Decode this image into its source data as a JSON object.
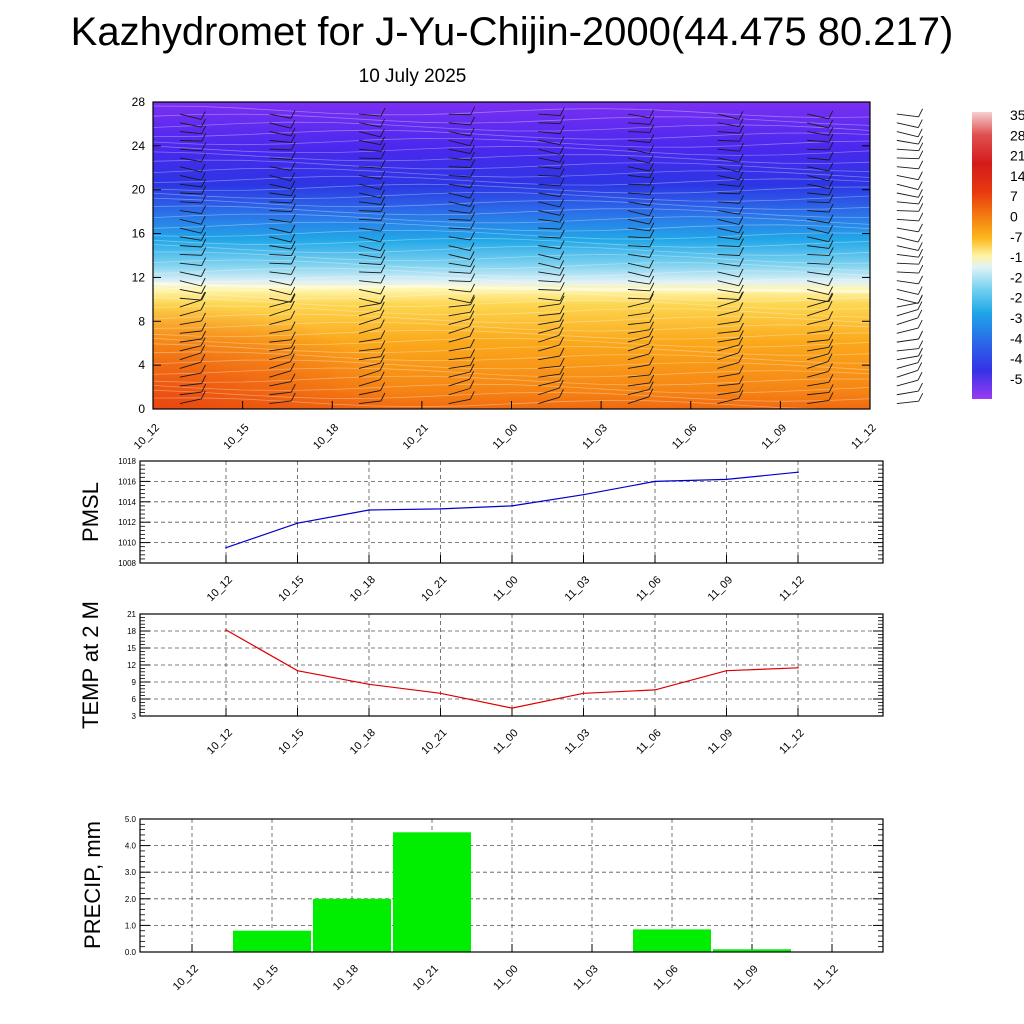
{
  "title": "Kazhydromet for J-Yu-Chijin-2000(44.475 80.217)",
  "subtitle": "10 July 2025",
  "chart_data": [
    {
      "type": "heatmap",
      "name": "cross-section",
      "x_ticks": [
        "10_12",
        "10_15",
        "10_18",
        "10_21",
        "11_00",
        "11_03",
        "11_06",
        "11_09",
        "11_12"
      ],
      "y_ticks": [
        0,
        4,
        8,
        12,
        16,
        20,
        24,
        28
      ],
      "ylim": [
        0,
        28
      ],
      "colorbar_labels": [
        "35",
        "28",
        "21",
        "14",
        "7",
        "0",
        "-7",
        "-1",
        "-2",
        "-2",
        "-3",
        "-4",
        "-4",
        "-5"
      ],
      "colorbar_colors": [
        "#f2c4c4",
        "#e05050",
        "#d82020",
        "#e83010",
        "#f37a10",
        "#fbb81c",
        "#fff3a8",
        "#dff1f7",
        "#6fd0ee",
        "#1ea6e8",
        "#2a74e8",
        "#2f3fe6",
        "#4b1ef2",
        "#9a3cf2"
      ],
      "surface_isotherm_m": [
        11.4,
        11.2,
        11.1,
        11.2,
        11.0,
        10.9,
        10.9,
        10.8,
        10.7
      ],
      "barb_columns_x_index": [
        0.5,
        1.5,
        2.5,
        3.5,
        4.5,
        5.5,
        6.5,
        7.5,
        8.5
      ]
    },
    {
      "type": "line",
      "name": "pmsl",
      "ylabel": "PMSL",
      "categories": [
        "10_12",
        "10_15",
        "10_18",
        "10_21",
        "11_00",
        "11_03",
        "11_06",
        "11_09",
        "11_12"
      ],
      "values": [
        1009.5,
        1011.9,
        1013.2,
        1013.3,
        1013.6,
        1014.7,
        1016.0,
        1016.2,
        1016.9
      ],
      "ylim": [
        1008,
        1018
      ],
      "y_ticks": [
        1008,
        1010,
        1012,
        1014,
        1016,
        1018
      ],
      "color": "#0000cc",
      "grid": true
    },
    {
      "type": "line",
      "name": "temp2m",
      "ylabel": "TEMP at 2 M",
      "categories": [
        "10_12",
        "10_15",
        "10_18",
        "10_21",
        "11_00",
        "11_03",
        "11_06",
        "11_09",
        "11_12"
      ],
      "values": [
        18.2,
        11.0,
        8.6,
        7.0,
        4.4,
        7.0,
        7.6,
        11.0,
        11.5
      ],
      "ylim": [
        3,
        21
      ],
      "y_ticks": [
        3,
        6,
        9,
        12,
        15,
        18,
        21
      ],
      "color": "#dd0000",
      "grid": true
    },
    {
      "type": "bar",
      "name": "precip",
      "ylabel": "PRECIP, mm",
      "categories": [
        "10_12",
        "10_15",
        "10_18",
        "10_21",
        "11_00",
        "11_03",
        "11_06",
        "11_09",
        "11_12"
      ],
      "values": [
        0,
        0.8,
        2.0,
        4.5,
        0,
        0.02,
        0.85,
        0.1,
        0.02
      ],
      "ylim": [
        0,
        5
      ],
      "y_ticks": [
        "0.0",
        "1.0",
        "2.0",
        "3.0",
        "4.0",
        "5.0"
      ],
      "color": "#00ee00",
      "grid": true
    }
  ]
}
